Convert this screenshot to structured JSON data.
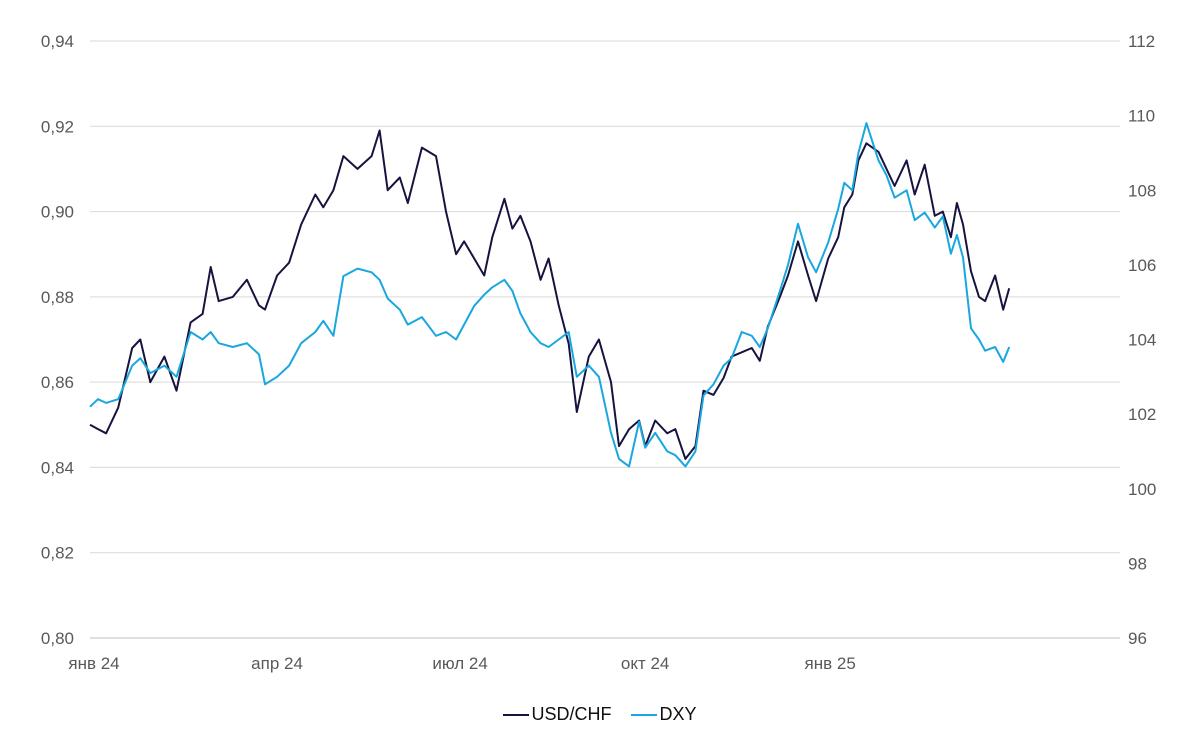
{
  "chart_data": {
    "type": "line",
    "title": "",
    "xlabel": "",
    "ylabel": "",
    "x_ticks": [
      "янв 24",
      "апр 24",
      "июл 24",
      "окт 24",
      "янв 25"
    ],
    "y_left_ticks": [
      "0,80",
      "0,82",
      "0,84",
      "0,86",
      "0,88",
      "0,90",
      "0,92",
      "0,94"
    ],
    "y_right_ticks": [
      "96",
      "98",
      "100",
      "102",
      "104",
      "106",
      "108",
      "110",
      "112"
    ],
    "y_left_range": [
      0.8,
      0.94
    ],
    "y_right_range": [
      96,
      112
    ],
    "x_range": [
      "2024-01-01",
      "2025-03-14"
    ],
    "grid": true,
    "legend_position": "bottom",
    "series": [
      {
        "name": "USD/CHF",
        "axis": "left",
        "color": "#16143f",
        "points": [
          [
            "2024-01-01",
            0.85
          ],
          [
            "2024-01-05",
            0.849
          ],
          [
            "2024-01-09",
            0.848
          ],
          [
            "2024-01-15",
            0.854
          ],
          [
            "2024-01-22",
            0.868
          ],
          [
            "2024-01-26",
            0.87
          ],
          [
            "2024-01-31",
            0.86
          ],
          [
            "2024-02-07",
            0.866
          ],
          [
            "2024-02-13",
            0.858
          ],
          [
            "2024-02-20",
            0.874
          ],
          [
            "2024-02-26",
            0.876
          ],
          [
            "2024-03-01",
            0.887
          ],
          [
            "2024-03-05",
            0.879
          ],
          [
            "2024-03-12",
            0.88
          ],
          [
            "2024-03-19",
            0.884
          ],
          [
            "2024-03-25",
            0.878
          ],
          [
            "2024-03-28",
            0.877
          ],
          [
            "2024-04-03",
            0.885
          ],
          [
            "2024-04-09",
            0.888
          ],
          [
            "2024-04-15",
            0.897
          ],
          [
            "2024-04-22",
            0.904
          ],
          [
            "2024-04-26",
            0.901
          ],
          [
            "2024-05-01",
            0.905
          ],
          [
            "2024-05-06",
            0.913
          ],
          [
            "2024-05-13",
            0.91
          ],
          [
            "2024-05-20",
            0.913
          ],
          [
            "2024-05-24",
            0.919
          ],
          [
            "2024-05-28",
            0.905
          ],
          [
            "2024-06-03",
            0.908
          ],
          [
            "2024-06-07",
            0.902
          ],
          [
            "2024-06-14",
            0.915
          ],
          [
            "2024-06-21",
            0.913
          ],
          [
            "2024-06-26",
            0.9
          ],
          [
            "2024-07-01",
            0.89
          ],
          [
            "2024-07-05",
            0.893
          ],
          [
            "2024-07-10",
            0.889
          ],
          [
            "2024-07-15",
            0.885
          ],
          [
            "2024-07-19",
            0.894
          ],
          [
            "2024-07-25",
            0.903
          ],
          [
            "2024-07-29",
            0.896
          ],
          [
            "2024-08-02",
            0.899
          ],
          [
            "2024-08-07",
            0.893
          ],
          [
            "2024-08-12",
            0.884
          ],
          [
            "2024-08-16",
            0.889
          ],
          [
            "2024-08-21",
            0.878
          ],
          [
            "2024-08-26",
            0.869
          ],
          [
            "2024-08-30",
            0.853
          ],
          [
            "2024-09-05",
            0.866
          ],
          [
            "2024-09-10",
            0.87
          ],
          [
            "2024-09-16",
            0.86
          ],
          [
            "2024-09-20",
            0.845
          ],
          [
            "2024-09-25",
            0.849
          ],
          [
            "2024-09-30",
            0.851
          ],
          [
            "2024-10-03",
            0.845
          ],
          [
            "2024-10-08",
            0.851
          ],
          [
            "2024-10-14",
            0.848
          ],
          [
            "2024-10-18",
            0.849
          ],
          [
            "2024-10-23",
            0.842
          ],
          [
            "2024-10-28",
            0.845
          ],
          [
            "2024-11-01",
            0.858
          ],
          [
            "2024-11-06",
            0.857
          ],
          [
            "2024-11-11",
            0.861
          ],
          [
            "2024-11-15",
            0.866
          ],
          [
            "2024-11-20",
            0.867
          ],
          [
            "2024-11-25",
            0.868
          ],
          [
            "2024-11-29",
            0.865
          ],
          [
            "2024-12-03",
            0.873
          ],
          [
            "2024-12-09",
            0.88
          ],
          [
            "2024-12-13",
            0.885
          ],
          [
            "2024-12-18",
            0.893
          ],
          [
            "2024-12-23",
            0.885
          ],
          [
            "2024-12-27",
            0.879
          ],
          [
            "2025-01-02",
            0.889
          ],
          [
            "2025-01-07",
            0.894
          ],
          [
            "2025-01-10",
            0.901
          ],
          [
            "2025-01-14",
            0.904
          ],
          [
            "2025-01-17",
            0.912
          ],
          [
            "2025-01-21",
            0.916
          ],
          [
            "2025-01-27",
            0.914
          ],
          [
            "2025-01-31",
            0.91
          ],
          [
            "2025-02-04",
            0.906
          ],
          [
            "2025-02-10",
            0.912
          ],
          [
            "2025-02-14",
            0.904
          ],
          [
            "2025-02-19",
            0.911
          ],
          [
            "2025-02-24",
            0.899
          ],
          [
            "2025-02-28",
            0.9
          ],
          [
            "2025-03-04",
            0.894
          ],
          [
            "2025-03-07",
            0.902
          ],
          [
            "2025-03-10",
            0.897
          ],
          [
            "2025-03-14",
            0.886
          ],
          [
            "2025-03-18",
            0.88
          ],
          [
            "2025-03-21",
            0.879
          ],
          [
            "2025-03-26",
            0.885
          ],
          [
            "2025-03-30",
            0.877
          ],
          [
            "2025-04-02",
            0.882
          ]
        ]
      },
      {
        "name": "DXY",
        "axis": "right",
        "color": "#1aa6df",
        "points": [
          [
            "2024-01-01",
            102.2
          ],
          [
            "2024-01-05",
            102.4
          ],
          [
            "2024-01-09",
            102.3
          ],
          [
            "2024-01-15",
            102.4
          ],
          [
            "2024-01-22",
            103.3
          ],
          [
            "2024-01-26",
            103.5
          ],
          [
            "2024-01-31",
            103.1
          ],
          [
            "2024-02-07",
            103.3
          ],
          [
            "2024-02-13",
            103.0
          ],
          [
            "2024-02-20",
            104.2
          ],
          [
            "2024-02-26",
            104.0
          ],
          [
            "2024-03-01",
            104.2
          ],
          [
            "2024-03-05",
            103.9
          ],
          [
            "2024-03-12",
            103.8
          ],
          [
            "2024-03-19",
            103.9
          ],
          [
            "2024-03-25",
            103.6
          ],
          [
            "2024-03-28",
            102.8
          ],
          [
            "2024-04-03",
            103.0
          ],
          [
            "2024-04-09",
            103.3
          ],
          [
            "2024-04-15",
            103.9
          ],
          [
            "2024-04-22",
            104.2
          ],
          [
            "2024-04-26",
            104.5
          ],
          [
            "2024-05-01",
            104.1
          ],
          [
            "2024-05-06",
            105.7
          ],
          [
            "2024-05-13",
            105.9
          ],
          [
            "2024-05-20",
            105.8
          ],
          [
            "2024-05-24",
            105.6
          ],
          [
            "2024-05-28",
            105.1
          ],
          [
            "2024-06-03",
            104.8
          ],
          [
            "2024-06-07",
            104.4
          ],
          [
            "2024-06-14",
            104.6
          ],
          [
            "2024-06-21",
            104.1
          ],
          [
            "2024-06-26",
            104.2
          ],
          [
            "2024-07-01",
            104.0
          ],
          [
            "2024-07-05",
            104.4
          ],
          [
            "2024-07-10",
            104.9
          ],
          [
            "2024-07-15",
            105.2
          ],
          [
            "2024-07-19",
            105.4
          ],
          [
            "2024-07-25",
            105.6
          ],
          [
            "2024-07-29",
            105.3
          ],
          [
            "2024-08-02",
            104.7
          ],
          [
            "2024-08-07",
            104.2
          ],
          [
            "2024-08-12",
            103.9
          ],
          [
            "2024-08-16",
            103.8
          ],
          [
            "2024-08-21",
            104.0
          ],
          [
            "2024-08-26",
            104.2
          ],
          [
            "2024-08-30",
            103.0
          ],
          [
            "2024-09-05",
            103.3
          ],
          [
            "2024-09-10",
            103.0
          ],
          [
            "2024-09-16",
            101.5
          ],
          [
            "2024-09-20",
            100.8
          ],
          [
            "2024-09-25",
            100.6
          ],
          [
            "2024-09-30",
            101.8
          ],
          [
            "2024-10-03",
            101.1
          ],
          [
            "2024-10-08",
            101.5
          ],
          [
            "2024-10-14",
            101.0
          ],
          [
            "2024-10-18",
            100.9
          ],
          [
            "2024-10-23",
            100.6
          ],
          [
            "2024-10-28",
            101.0
          ],
          [
            "2024-11-01",
            102.5
          ],
          [
            "2024-11-06",
            102.8
          ],
          [
            "2024-11-11",
            103.3
          ],
          [
            "2024-11-15",
            103.5
          ],
          [
            "2024-11-20",
            104.2
          ],
          [
            "2024-11-25",
            104.1
          ],
          [
            "2024-11-29",
            103.8
          ],
          [
            "2024-12-03",
            104.3
          ],
          [
            "2024-12-09",
            105.3
          ],
          [
            "2024-12-13",
            106.0
          ],
          [
            "2024-12-18",
            107.1
          ],
          [
            "2024-12-23",
            106.2
          ],
          [
            "2024-12-27",
            105.8
          ],
          [
            "2025-01-02",
            106.6
          ],
          [
            "2025-01-07",
            107.5
          ],
          [
            "2025-01-10",
            108.2
          ],
          [
            "2025-01-14",
            108.0
          ],
          [
            "2025-01-17",
            109.0
          ],
          [
            "2025-01-21",
            109.8
          ],
          [
            "2025-01-27",
            108.8
          ],
          [
            "2025-01-31",
            108.4
          ],
          [
            "2025-02-04",
            107.8
          ],
          [
            "2025-02-10",
            108.0
          ],
          [
            "2025-02-14",
            107.2
          ],
          [
            "2025-02-19",
            107.4
          ],
          [
            "2025-02-24",
            107.0
          ],
          [
            "2025-02-28",
            107.3
          ],
          [
            "2025-03-04",
            106.3
          ],
          [
            "2025-03-07",
            106.8
          ],
          [
            "2025-03-10",
            106.2
          ],
          [
            "2025-03-14",
            104.3
          ],
          [
            "2025-03-18",
            104.0
          ],
          [
            "2025-03-21",
            103.7
          ],
          [
            "2025-03-26",
            103.8
          ],
          [
            "2025-03-30",
            103.4
          ],
          [
            "2025-04-02",
            103.8
          ]
        ]
      }
    ]
  }
}
